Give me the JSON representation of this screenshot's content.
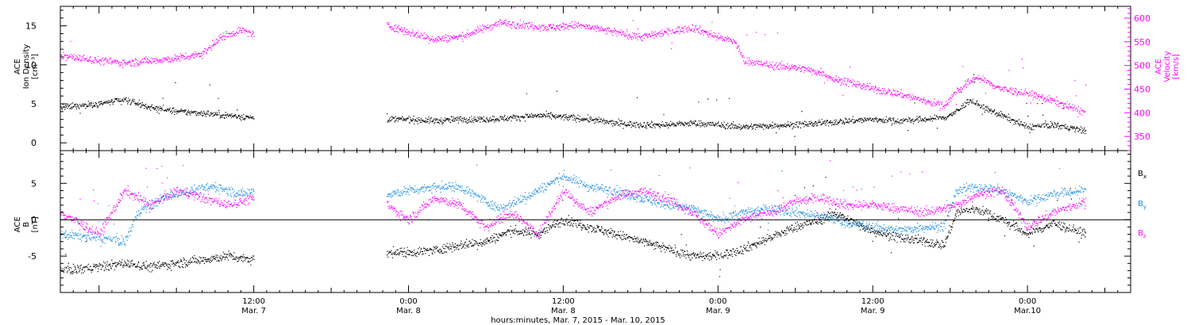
{
  "xaxis": {
    "title": "hours:minutes, Mar.  7, 2015 - Mar. 10, 2015",
    "tick_labels": [
      {
        "hour": 12,
        "time": "12:00",
        "date": "Mar. 7"
      },
      {
        "hour": 24,
        "time": "0:00",
        "date": "Mar. 8"
      },
      {
        "hour": 36,
        "time": "12:00",
        "date": "Mar. 8"
      },
      {
        "hour": 48,
        "time": "0:00",
        "date": "Mar. 9"
      },
      {
        "hour": 60,
        "time": "12:00",
        "date": "Mar. 9"
      },
      {
        "hour": 72,
        "time": "0:00",
        "date": "Mar.10"
      }
    ]
  },
  "colors": {
    "black": "#000000",
    "magenta": "#ff00ff",
    "blue": "#1e8fe6"
  },
  "chart_data": [
    {
      "type": "scatter",
      "panel": "top",
      "left_axis": {
        "label_lines": [
          "ACE",
          "Ion Density",
          "[cm⁻³]"
        ],
        "ylim": [
          -1,
          17.5
        ],
        "ticks": [
          0,
          5,
          10,
          15
        ],
        "tick_labels": [
          "0",
          "5",
          "10",
          "15"
        ]
      },
      "right_axis": {
        "label_lines": [
          "ACE",
          "Velocity",
          "[km/s]"
        ],
        "ylim": [
          320,
          625
        ],
        "ticks": [
          350,
          400,
          450,
          500,
          550,
          600
        ],
        "tick_labels": [
          "350",
          "400",
          "450",
          "500",
          "550",
          "600"
        ],
        "color": "#ff00ff"
      },
      "xlim_hours": [
        -3,
        80
      ],
      "gap_hours": [
        12,
        22.3
      ],
      "end_hour": 76.5,
      "series": [
        {
          "axis": "left",
          "color": "#000000",
          "points": [
            [
              -3,
              4.5
            ],
            [
              0,
              5
            ],
            [
              2,
              5.5
            ],
            [
              4,
              4.5
            ],
            [
              6,
              4
            ],
            [
              8,
              3.8
            ],
            [
              10,
              3.5
            ],
            [
              12,
              3.2
            ],
            [
              22.3,
              3
            ],
            [
              24,
              3
            ],
            [
              26,
              2.8
            ],
            [
              28,
              3
            ],
            [
              30,
              3
            ],
            [
              32,
              3.2
            ],
            [
              34,
              3.5
            ],
            [
              36,
              3.3
            ],
            [
              38,
              3
            ],
            [
              40,
              2.5
            ],
            [
              42,
              2.3
            ],
            [
              44,
              2.3
            ],
            [
              46,
              2.5
            ],
            [
              48,
              2.3
            ],
            [
              50,
              2
            ],
            [
              52,
              2.2
            ],
            [
              54,
              2.3
            ],
            [
              56,
              2.5
            ],
            [
              58,
              2.8
            ],
            [
              60,
              3
            ],
            [
              62,
              2.8
            ],
            [
              64,
              3
            ],
            [
              65.5,
              3.2
            ],
            [
              66.5,
              4
            ],
            [
              67.5,
              5.5
            ],
            [
              68.5,
              4.5
            ],
            [
              70,
              3.5
            ],
            [
              72,
              2
            ],
            [
              74,
              2.3
            ],
            [
              76.5,
              1.5
            ]
          ]
        },
        {
          "axis": "right",
          "color": "#ff00ff",
          "points": [
            [
              -3,
              520
            ],
            [
              0,
              510
            ],
            [
              2,
              505
            ],
            [
              4,
              510
            ],
            [
              6,
              515
            ],
            [
              8,
              525
            ],
            [
              9.5,
              560
            ],
            [
              11,
              575
            ],
            [
              12,
              565
            ],
            [
              22.3,
              585
            ],
            [
              24,
              570
            ],
            [
              26,
              555
            ],
            [
              28,
              560
            ],
            [
              30,
              580
            ],
            [
              31,
              590
            ],
            [
              33,
              585
            ],
            [
              35,
              580
            ],
            [
              37,
              585
            ],
            [
              38,
              580
            ],
            [
              40,
              570
            ],
            [
              42,
              560
            ],
            [
              44,
              570
            ],
            [
              46,
              580
            ],
            [
              48,
              560
            ],
            [
              49.3,
              550
            ],
            [
              50,
              510
            ],
            [
              52,
              500
            ],
            [
              54,
              495
            ],
            [
              56,
              485
            ],
            [
              57,
              470
            ],
            [
              58,
              465
            ],
            [
              60,
              450
            ],
            [
              62,
              440
            ],
            [
              64,
              425
            ],
            [
              65.5,
              415
            ],
            [
              66.5,
              445
            ],
            [
              68,
              475
            ],
            [
              70,
              450
            ],
            [
              72,
              440
            ],
            [
              74,
              425
            ],
            [
              76.5,
              400
            ]
          ]
        }
      ]
    },
    {
      "type": "scatter",
      "panel": "bottom",
      "left_axis": {
        "label_lines": [
          "ACE",
          "B",
          "[nT]"
        ],
        "ylim": [
          -10,
          9.5
        ],
        "ticks": [
          -5,
          0,
          5
        ],
        "tick_labels": [
          "-5",
          "0",
          "5"
        ]
      },
      "xlim_hours": [
        -3,
        80
      ],
      "gap_hours": [
        12,
        22.3
      ],
      "end_hour": 76.5,
      "zero_line": true,
      "series": [
        {
          "name": "Bx",
          "legend_base": "B",
          "legend_sub": "x",
          "color": "#000000",
          "points": [
            [
              -3,
              -7
            ],
            [
              0,
              -6.5
            ],
            [
              2,
              -6
            ],
            [
              4,
              -6.5
            ],
            [
              6,
              -6
            ],
            [
              8,
              -5.5
            ],
            [
              10,
              -5
            ],
            [
              12,
              -5.5
            ],
            [
              22.3,
              -4.5
            ],
            [
              24,
              -4.5
            ],
            [
              26,
              -4.2
            ],
            [
              28,
              -3.5
            ],
            [
              30,
              -3
            ],
            [
              32,
              -1.5
            ],
            [
              34,
              -2
            ],
            [
              36,
              0
            ],
            [
              38,
              -1
            ],
            [
              40,
              -2
            ],
            [
              42,
              -3
            ],
            [
              44,
              -4
            ],
            [
              46,
              -5
            ],
            [
              48,
              -5
            ],
            [
              50,
              -4
            ],
            [
              52,
              -2.5
            ],
            [
              54,
              -1
            ],
            [
              56,
              0
            ],
            [
              57,
              1
            ],
            [
              58,
              0
            ],
            [
              60,
              -1.5
            ],
            [
              62,
              -2.5
            ],
            [
              64,
              -3
            ],
            [
              65.5,
              -3.5
            ],
            [
              66.5,
              1
            ],
            [
              68,
              1.5
            ],
            [
              70,
              0
            ],
            [
              72,
              -2
            ],
            [
              74,
              -0.5
            ],
            [
              76.5,
              -2
            ]
          ]
        },
        {
          "name": "By",
          "legend_base": "B",
          "legend_sub": "y",
          "color": "#1e8fe6",
          "points": [
            [
              -3,
              -2
            ],
            [
              0,
              -2.5
            ],
            [
              2,
              -3
            ],
            [
              3,
              1
            ],
            [
              5,
              3
            ],
            [
              7,
              4
            ],
            [
              9,
              4.5
            ],
            [
              11,
              3.5
            ],
            [
              12,
              4
            ],
            [
              22.3,
              3.5
            ],
            [
              24,
              4
            ],
            [
              26,
              4.5
            ],
            [
              28,
              4.5
            ],
            [
              29.5,
              3
            ],
            [
              31,
              1.5
            ],
            [
              33,
              3
            ],
            [
              35,
              5
            ],
            [
              36,
              6
            ],
            [
              38,
              4.5
            ],
            [
              40,
              4
            ],
            [
              42,
              3
            ],
            [
              44,
              2
            ],
            [
              46,
              1.5
            ],
            [
              48,
              0
            ],
            [
              50,
              1
            ],
            [
              52,
              1.5
            ],
            [
              54,
              1
            ],
            [
              56,
              0.5
            ],
            [
              58,
              -0.5
            ],
            [
              60,
              -1
            ],
            [
              62,
              -1.5
            ],
            [
              64,
              -1
            ],
            [
              65.5,
              -1
            ],
            [
              66.5,
              4
            ],
            [
              68,
              4.5
            ],
            [
              70,
              4
            ],
            [
              72,
              2.5
            ],
            [
              74,
              3.5
            ],
            [
              76.5,
              4
            ]
          ]
        },
        {
          "name": "Bz",
          "legend_base": "B",
          "legend_sub": "z",
          "color": "#ff00ff",
          "points": [
            [
              -3,
              1
            ],
            [
              0,
              -2
            ],
            [
              2,
              4
            ],
            [
              4,
              2
            ],
            [
              6,
              4
            ],
            [
              8,
              3
            ],
            [
              10,
              2
            ],
            [
              12,
              3
            ],
            [
              22.3,
              2
            ],
            [
              24,
              0
            ],
            [
              26,
              3
            ],
            [
              28,
              2
            ],
            [
              30,
              -1
            ],
            [
              32,
              1
            ],
            [
              34,
              -2
            ],
            [
              36,
              4
            ],
            [
              38,
              1
            ],
            [
              40,
              3
            ],
            [
              42,
              4
            ],
            [
              44,
              3
            ],
            [
              46,
              1
            ],
            [
              48,
              -2
            ],
            [
              50,
              0
            ],
            [
              52,
              1
            ],
            [
              54,
              2.5
            ],
            [
              56,
              3
            ],
            [
              58,
              2
            ],
            [
              60,
              2
            ],
            [
              62,
              1.5
            ],
            [
              64,
              1
            ],
            [
              65.5,
              1.5
            ],
            [
              66.5,
              2
            ],
            [
              68,
              3.5
            ],
            [
              70,
              4
            ],
            [
              72,
              -1
            ],
            [
              74,
              1
            ],
            [
              76.5,
              2.5
            ]
          ]
        }
      ]
    }
  ]
}
